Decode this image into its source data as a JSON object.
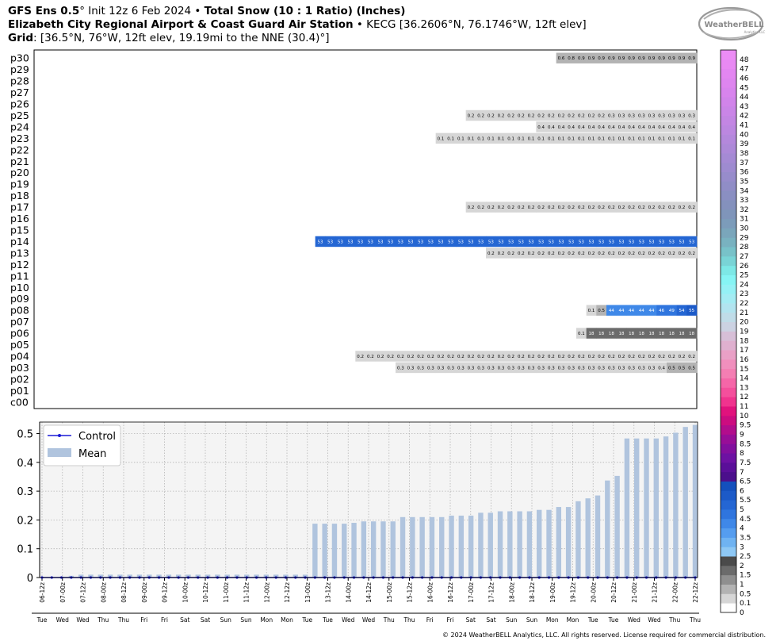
{
  "header": {
    "line1_model": "GFS Ens 0.5",
    "line1_deg": "°",
    "line1_init": " Init 12z 6 Feb 2024 • ",
    "line1_product": "Total Snow (10 : 1 Ratio) (Inches)",
    "line2_station": "Elizabeth City Regional Airport & Coast Guard Air Station",
    "line2_info": " • KECG [36.2606°N, 76.1746°W, 12ft elev]",
    "line3_label": "Grid",
    "line3_info": ": [36.5°N, 76°W, 12ft elev, 19.19mi to the NNE (30.4)°]"
  },
  "logo": {
    "text": "WeatherBELL",
    "subtext": "Analytics LLC"
  },
  "footer": {
    "copyright": "© 2024 WeatherBELL Analytics, LLC. All rights reserved. License required for commercial distribution."
  },
  "colors": {
    "ensemble_blue": "#1f5fd0",
    "dark_gray": "#4a4a4a",
    "mean_bar": "#b0c4de",
    "control_line": "#1a1ad6",
    "panel_bg": "#f4f4f4"
  },
  "chart_data": [
    {
      "type": "heatmap",
      "title": "Total Snow (10 : 1 Ratio) (Inches)",
      "members": [
        "p30",
        "p29",
        "p28",
        "p27",
        "p26",
        "p25",
        "p24",
        "p23",
        "p22",
        "p21",
        "p20",
        "p19",
        "p18",
        "p17",
        "p16",
        "p15",
        "p14",
        "p13",
        "p12",
        "p11",
        "p10",
        "p09",
        "p08",
        "p07",
        "p06",
        "p05",
        "p04",
        "p03",
        "p02",
        "p01",
        "c00"
      ],
      "time_steps": 66,
      "rows": [
        {
          "member": "p30",
          "start": 52,
          "values": [
            0.6,
            0.8,
            0.9,
            0.9,
            0.9,
            0.9,
            0.9,
            0.9,
            0.9,
            0.9,
            0.9,
            0.9,
            0.9,
            0.9
          ]
        },
        {
          "member": "p25",
          "start": 43,
          "values": [
            0.2,
            0.2,
            0.2,
            0.2,
            0.2,
            0.2,
            0.2,
            0.2,
            0.2,
            0.2,
            0.2,
            0.2,
            0.2,
            0.2,
            0.3,
            0.3,
            0.3,
            0.3,
            0.3,
            0.3,
            0.3,
            0.3,
            0.3
          ]
        },
        {
          "member": "p24",
          "start": 50,
          "values": [
            0.4,
            0.4,
            0.4,
            0.4,
            0.4,
            0.4,
            0.4,
            0.4,
            0.4,
            0.4,
            0.4,
            0.4,
            0.4,
            0.4,
            0.4,
            0.4
          ]
        },
        {
          "member": "p23",
          "start": 40,
          "values": [
            0.1,
            0.1,
            0.1,
            0.1,
            0.1,
            0.1,
            0.1,
            0.1,
            0.1,
            0.1,
            0.1,
            0.1,
            0.1,
            0.1,
            0.1,
            0.1,
            0.1,
            0.1,
            0.1,
            0.1,
            0.1,
            0.1,
            0.1,
            0.1,
            0.1,
            0.1
          ]
        },
        {
          "member": "p17",
          "start": 43,
          "values": [
            0.2,
            0.2,
            0.2,
            0.2,
            0.2,
            0.2,
            0.2,
            0.2,
            0.2,
            0.2,
            0.2,
            0.2,
            0.2,
            0.2,
            0.2,
            0.2,
            0.2,
            0.2,
            0.2,
            0.2,
            0.2,
            0.2,
            0.2
          ]
        },
        {
          "member": "p14",
          "start": 28,
          "values": [
            5.3,
            5.3,
            5.3,
            5.3,
            5.3,
            5.3,
            5.3,
            5.3,
            5.3,
            5.3,
            5.3,
            5.3,
            5.3,
            5.3,
            5.3,
            5.3,
            5.3,
            5.3,
            5.3,
            5.3,
            5.3,
            5.3,
            5.3,
            5.3,
            5.3,
            5.3,
            5.3,
            5.3,
            5.3,
            5.3,
            5.3,
            5.3,
            5.3,
            5.3,
            5.3,
            5.3,
            5.3,
            5.3
          ]
        },
        {
          "member": "p13",
          "start": 45,
          "values": [
            0.2,
            0.2,
            0.2,
            0.2,
            0.2,
            0.2,
            0.2,
            0.2,
            0.2,
            0.2,
            0.2,
            0.2,
            0.2,
            0.2,
            0.2,
            0.2,
            0.2,
            0.2,
            0.2,
            0.2,
            0.2
          ]
        },
        {
          "member": "p08",
          "start": 55,
          "values": [
            0.1,
            0.5,
            4.4,
            4.4,
            4.4,
            4.4,
            4.4,
            4.6,
            4.9,
            5.4,
            5.5
          ]
        },
        {
          "member": "p06",
          "start": 54,
          "values": [
            0.1,
            1.8,
            1.8,
            1.8,
            1.8,
            1.8,
            1.8,
            1.8,
            1.8,
            1.8,
            1.8,
            1.8
          ]
        },
        {
          "member": "p04",
          "start": 32,
          "values": [
            0.2,
            0.2,
            0.2,
            0.2,
            0.2,
            0.2,
            0.2,
            0.2,
            0.2,
            0.2,
            0.2,
            0.2,
            0.2,
            0.2,
            0.2,
            0.2,
            0.2,
            0.2,
            0.2,
            0.2,
            0.2,
            0.2,
            0.2,
            0.2,
            0.2,
            0.2,
            0.2,
            0.2,
            0.2,
            0.2,
            0.2,
            0.2,
            0.2,
            0.2
          ]
        },
        {
          "member": "p03",
          "start": 36,
          "values": [
            0.3,
            0.3,
            0.3,
            0.3,
            0.3,
            0.3,
            0.3,
            0.3,
            0.3,
            0.3,
            0.3,
            0.3,
            0.3,
            0.3,
            0.3,
            0.3,
            0.3,
            0.3,
            0.3,
            0.3,
            0.3,
            0.3,
            0.3,
            0.3,
            0.3,
            0.3,
            0.4,
            0.5,
            0.5,
            0.5
          ]
        }
      ]
    },
    {
      "type": "bar",
      "legend": [
        "Control",
        "Mean"
      ],
      "legend_position": "top-left",
      "ylim": [
        0,
        0.54
      ],
      "yticks": [
        0.0,
        0.1,
        0.2,
        0.3,
        0.4,
        0.5
      ],
      "grid": true,
      "x_labels": [
        "06-12z",
        "07-00z",
        "07-12z",
        "08-00z",
        "08-12z",
        "09-00z",
        "09-12z",
        "10-00z",
        "10-12z",
        "11-00z",
        "11-12z",
        "12-00z",
        "12-12z",
        "13-00z",
        "13-12z",
        "14-00z",
        "14-12z",
        "15-00z",
        "15-12z",
        "16-00z",
        "16-12z",
        "17-00z",
        "17-12z",
        "18-00z",
        "18-12z",
        "19-00z",
        "19-12z",
        "20-00z",
        "20-12z",
        "21-00z",
        "21-12z",
        "22-00z",
        "22-12z"
      ],
      "day_labels": [
        "Tue",
        "Wed",
        "Wed",
        "Thu",
        "Thu",
        "Fri",
        "Fri",
        "Sat",
        "Sat",
        "Sun",
        "Sun",
        "Mon",
        "Mon",
        "Tue",
        "Tue",
        "Wed",
        "Wed",
        "Thu",
        "Thu",
        "Fri",
        "Fri",
        "Sat",
        "Sat",
        "Sun",
        "Sun",
        "Mon",
        "Mon",
        "Tue",
        "Tue",
        "Wed",
        "Wed",
        "Thu",
        "Thu"
      ],
      "series": [
        {
          "name": "Mean",
          "values": [
            0,
            0,
            0.003,
            0.006,
            0.01,
            0.01,
            0.01,
            0.01,
            0.01,
            0.01,
            0.01,
            0.01,
            0.01,
            0.01,
            0.01,
            0.01,
            0.01,
            0.01,
            0.01,
            0.01,
            0.01,
            0.01,
            0.01,
            0.01,
            0.01,
            0.01,
            0.01,
            0.01,
            0.187,
            0.187,
            0.187,
            0.187,
            0.19,
            0.195,
            0.195,
            0.195,
            0.195,
            0.21,
            0.21,
            0.21,
            0.21,
            0.21,
            0.215,
            0.215,
            0.215,
            0.225,
            0.225,
            0.23,
            0.23,
            0.23,
            0.23,
            0.235,
            0.235,
            0.245,
            0.245,
            0.265,
            0.275,
            0.285,
            0.337,
            0.353,
            0.483,
            0.483,
            0.483,
            0.483,
            0.49,
            0.503,
            0.523,
            0.53
          ]
        },
        {
          "name": "Control",
          "values": [
            0,
            0,
            0,
            0,
            0,
            0,
            0,
            0,
            0,
            0,
            0,
            0,
            0,
            0,
            0,
            0,
            0,
            0,
            0,
            0,
            0,
            0,
            0,
            0,
            0,
            0,
            0,
            0,
            0,
            0,
            0,
            0,
            0,
            0,
            0,
            0,
            0,
            0,
            0,
            0,
            0,
            0,
            0,
            0,
            0,
            0,
            0,
            0,
            0,
            0,
            0,
            0,
            0,
            0,
            0,
            0,
            0,
            0,
            0,
            0,
            0,
            0,
            0,
            0,
            0,
            0,
            0,
            0
          ]
        }
      ]
    },
    {
      "type": "colorbar",
      "levels": [
        "0",
        "0.1",
        "0.5",
        "1",
        "1.5",
        "2",
        "2.5",
        "3",
        "3.5",
        "4",
        "4.5",
        "5",
        "5.5",
        "6",
        "6.5",
        "7",
        "7.5",
        "8",
        "8.5",
        "9",
        "9.5",
        "10",
        "11",
        "12",
        "13",
        "14",
        "15",
        "16",
        "17",
        "18",
        "19",
        "20",
        "21",
        "22",
        "23",
        "24",
        "25",
        "26",
        "27",
        "28",
        "29",
        "30",
        "31",
        "32",
        "33",
        "34",
        "35",
        "36",
        "37",
        "38",
        "39",
        "40",
        "41",
        "42",
        "43",
        "44",
        "45",
        "46",
        "47",
        "48"
      ],
      "colors": [
        "#ffffff",
        "#d6d6d6",
        "#b3b3b3",
        "#8f8f8f",
        "#6b6b6b",
        "#4a4a4a",
        "#8ec8f5",
        "#6fb3f2",
        "#559def",
        "#3f88e8",
        "#2f75de",
        "#2466d3",
        "#1c5ac8",
        "#1450bd",
        "#4b0f8c",
        "#5a0f99",
        "#6d11a3",
        "#820f9e",
        "#980e97",
        "#b20d8c",
        "#cc0c80",
        "#e1127d",
        "#f0338e",
        "#f44f9c",
        "#f566a8",
        "#f47eb3",
        "#f08fbd",
        "#e9a0c6",
        "#dfb0cf",
        "#d7bfd7",
        "#ccd2e2",
        "#c0dce8",
        "#b2e4ef",
        "#a4ecf3",
        "#95f1f5",
        "#86f4f4",
        "#7de8e6",
        "#79d4d6",
        "#78c2c9",
        "#79b2c0",
        "#7aa6bb",
        "#7c9cba",
        "#7f95ba",
        "#8491bd",
        "#8a8fc2",
        "#908dc6",
        "#978ccb",
        "#9e8bd0",
        "#a58ad4",
        "#ad89d8",
        "#b488dc",
        "#bc87e0",
        "#c386e3",
        "#ca85e7",
        "#d184ea",
        "#d884ed",
        "#de85ef",
        "#e386f1",
        "#e889f3",
        "#ec8cf5"
      ]
    }
  ]
}
